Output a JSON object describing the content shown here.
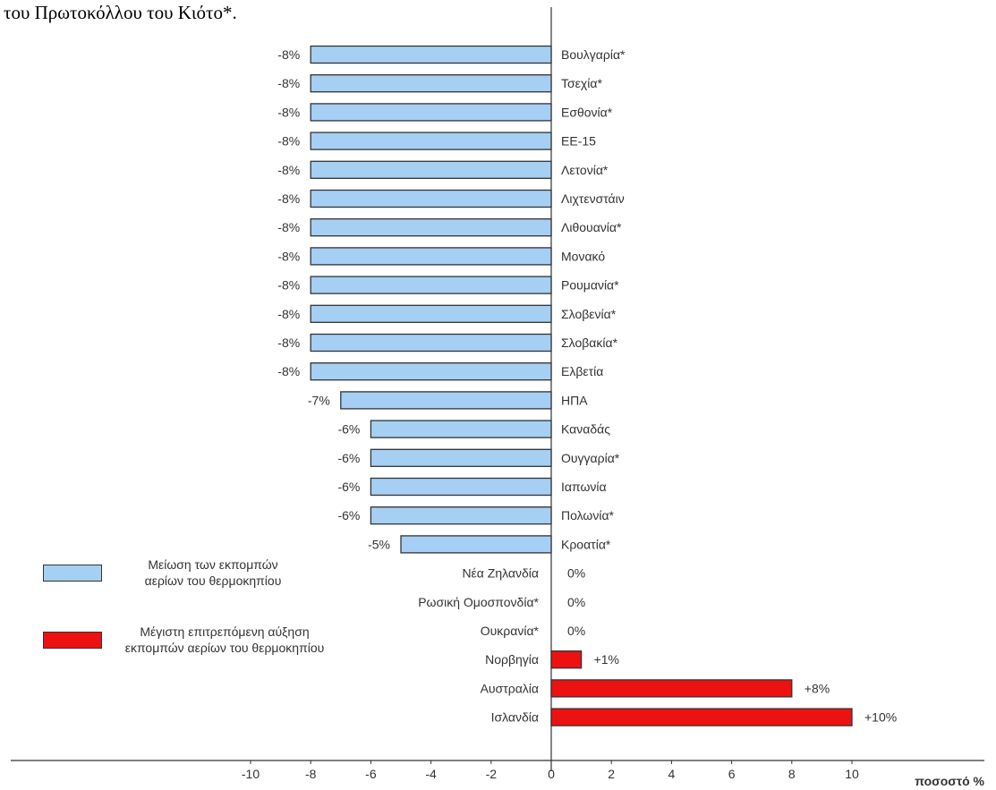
{
  "heading": "του Πρωτοκόλλου του Κιότο*.",
  "legend": [
    {
      "line1": "Μείωση των εκπομπών",
      "line2": "αερίων του θερμοκηπίου",
      "color": "#a6cff4"
    },
    {
      "line1": "Μέγιστη επιτρεπόμενη αύξηση",
      "line2": "εκπομπών αερίων του θερμοκηπίου",
      "color": "#ee1111"
    }
  ],
  "chart_data": {
    "type": "bar",
    "orientation": "horizontal",
    "xlabel": "ποσοστό %",
    "xlim": [
      -11,
      10.5
    ],
    "xticks": [
      -10,
      -8,
      -6,
      -4,
      -2,
      0,
      2,
      4,
      6,
      8,
      10
    ],
    "colors": {
      "negative": "#a6cff4",
      "positive": "#ee1111"
    },
    "categories": [
      "Βουλγαρία*",
      "Τσεχία*",
      "Εσθονία*",
      "ΕΕ-15",
      "Λετονία*",
      "Λιχτενστάιν",
      "Λιθουανία*",
      "Μονακό",
      "Ρουμανία*",
      "Σλοβενία*",
      "Σλοβακία*",
      "Ελβετία",
      "ΗΠΑ",
      "Καναδάς",
      "Ουγγαρία*",
      "Ιαπωνία",
      "Πολωνία*",
      "Κροατία*",
      "Νέα Ζηλανδία",
      "Ρωσική Ομοσπονδία*",
      "Ουκρανία*",
      "Νορβηγία",
      "Αυστραλία",
      "Ισλανδία"
    ],
    "values": [
      -8,
      -8,
      -8,
      -8,
      -8,
      -8,
      -8,
      -8,
      -8,
      -8,
      -8,
      -8,
      -7,
      -6,
      -6,
      -6,
      -6,
      -5,
      0,
      0,
      0,
      1,
      8,
      10
    ],
    "value_labels": [
      "-8%",
      "-8%",
      "-8%",
      "-8%",
      "-8%",
      "-8%",
      "-8%",
      "-8%",
      "-8%",
      "-8%",
      "-8%",
      "-8%",
      "-7%",
      "-6%",
      "-6%",
      "-6%",
      "-6%",
      "-5%",
      "0%",
      "0%",
      "0%",
      "+1%",
      "+8%",
      "+10%"
    ]
  }
}
